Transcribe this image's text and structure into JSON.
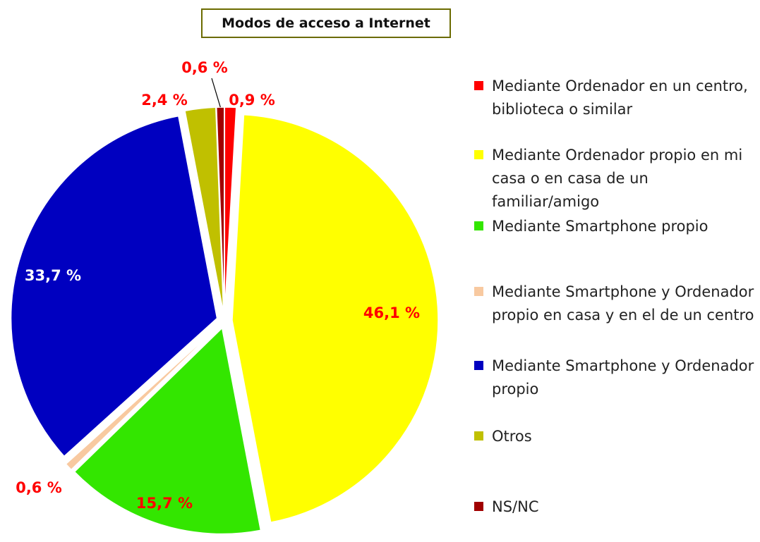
{
  "chart_data": {
    "type": "pie",
    "title": "Modos de acceso a Internet",
    "categories": [
      "Mediante Ordenador en un centro, biblioteca o  similar",
      "Mediante Ordenador propio en mi casa o en casa de  un familiar/amigo",
      "Mediante Smartphone propio",
      "Mediante Smartphone y Ordenador propio en casa y  en el de un centro",
      "Mediante Smartphone y Ordenador propio",
      "Otros",
      "NS/NC"
    ],
    "values": [
      0.9,
      46.1,
      15.7,
      0.6,
      33.7,
      2.4,
      0.6
    ],
    "value_labels": [
      "0,9 %",
      "46,1 %",
      "15,7 %",
      "0,6 %",
      "33,7 %",
      "2,4 %",
      "0,6 %"
    ],
    "colors": [
      "#ff0000",
      "#ffff00",
      "#33e600",
      "#f8c9a0",
      "#0000c0",
      "#c0c000",
      "#a00000"
    ],
    "value_label_colors": [
      "#ff0000",
      "#ff0000",
      "#ff0000",
      "#ff0000",
      "#ffffff",
      "#ff0000",
      "#ff0000"
    ],
    "legend": "right"
  }
}
